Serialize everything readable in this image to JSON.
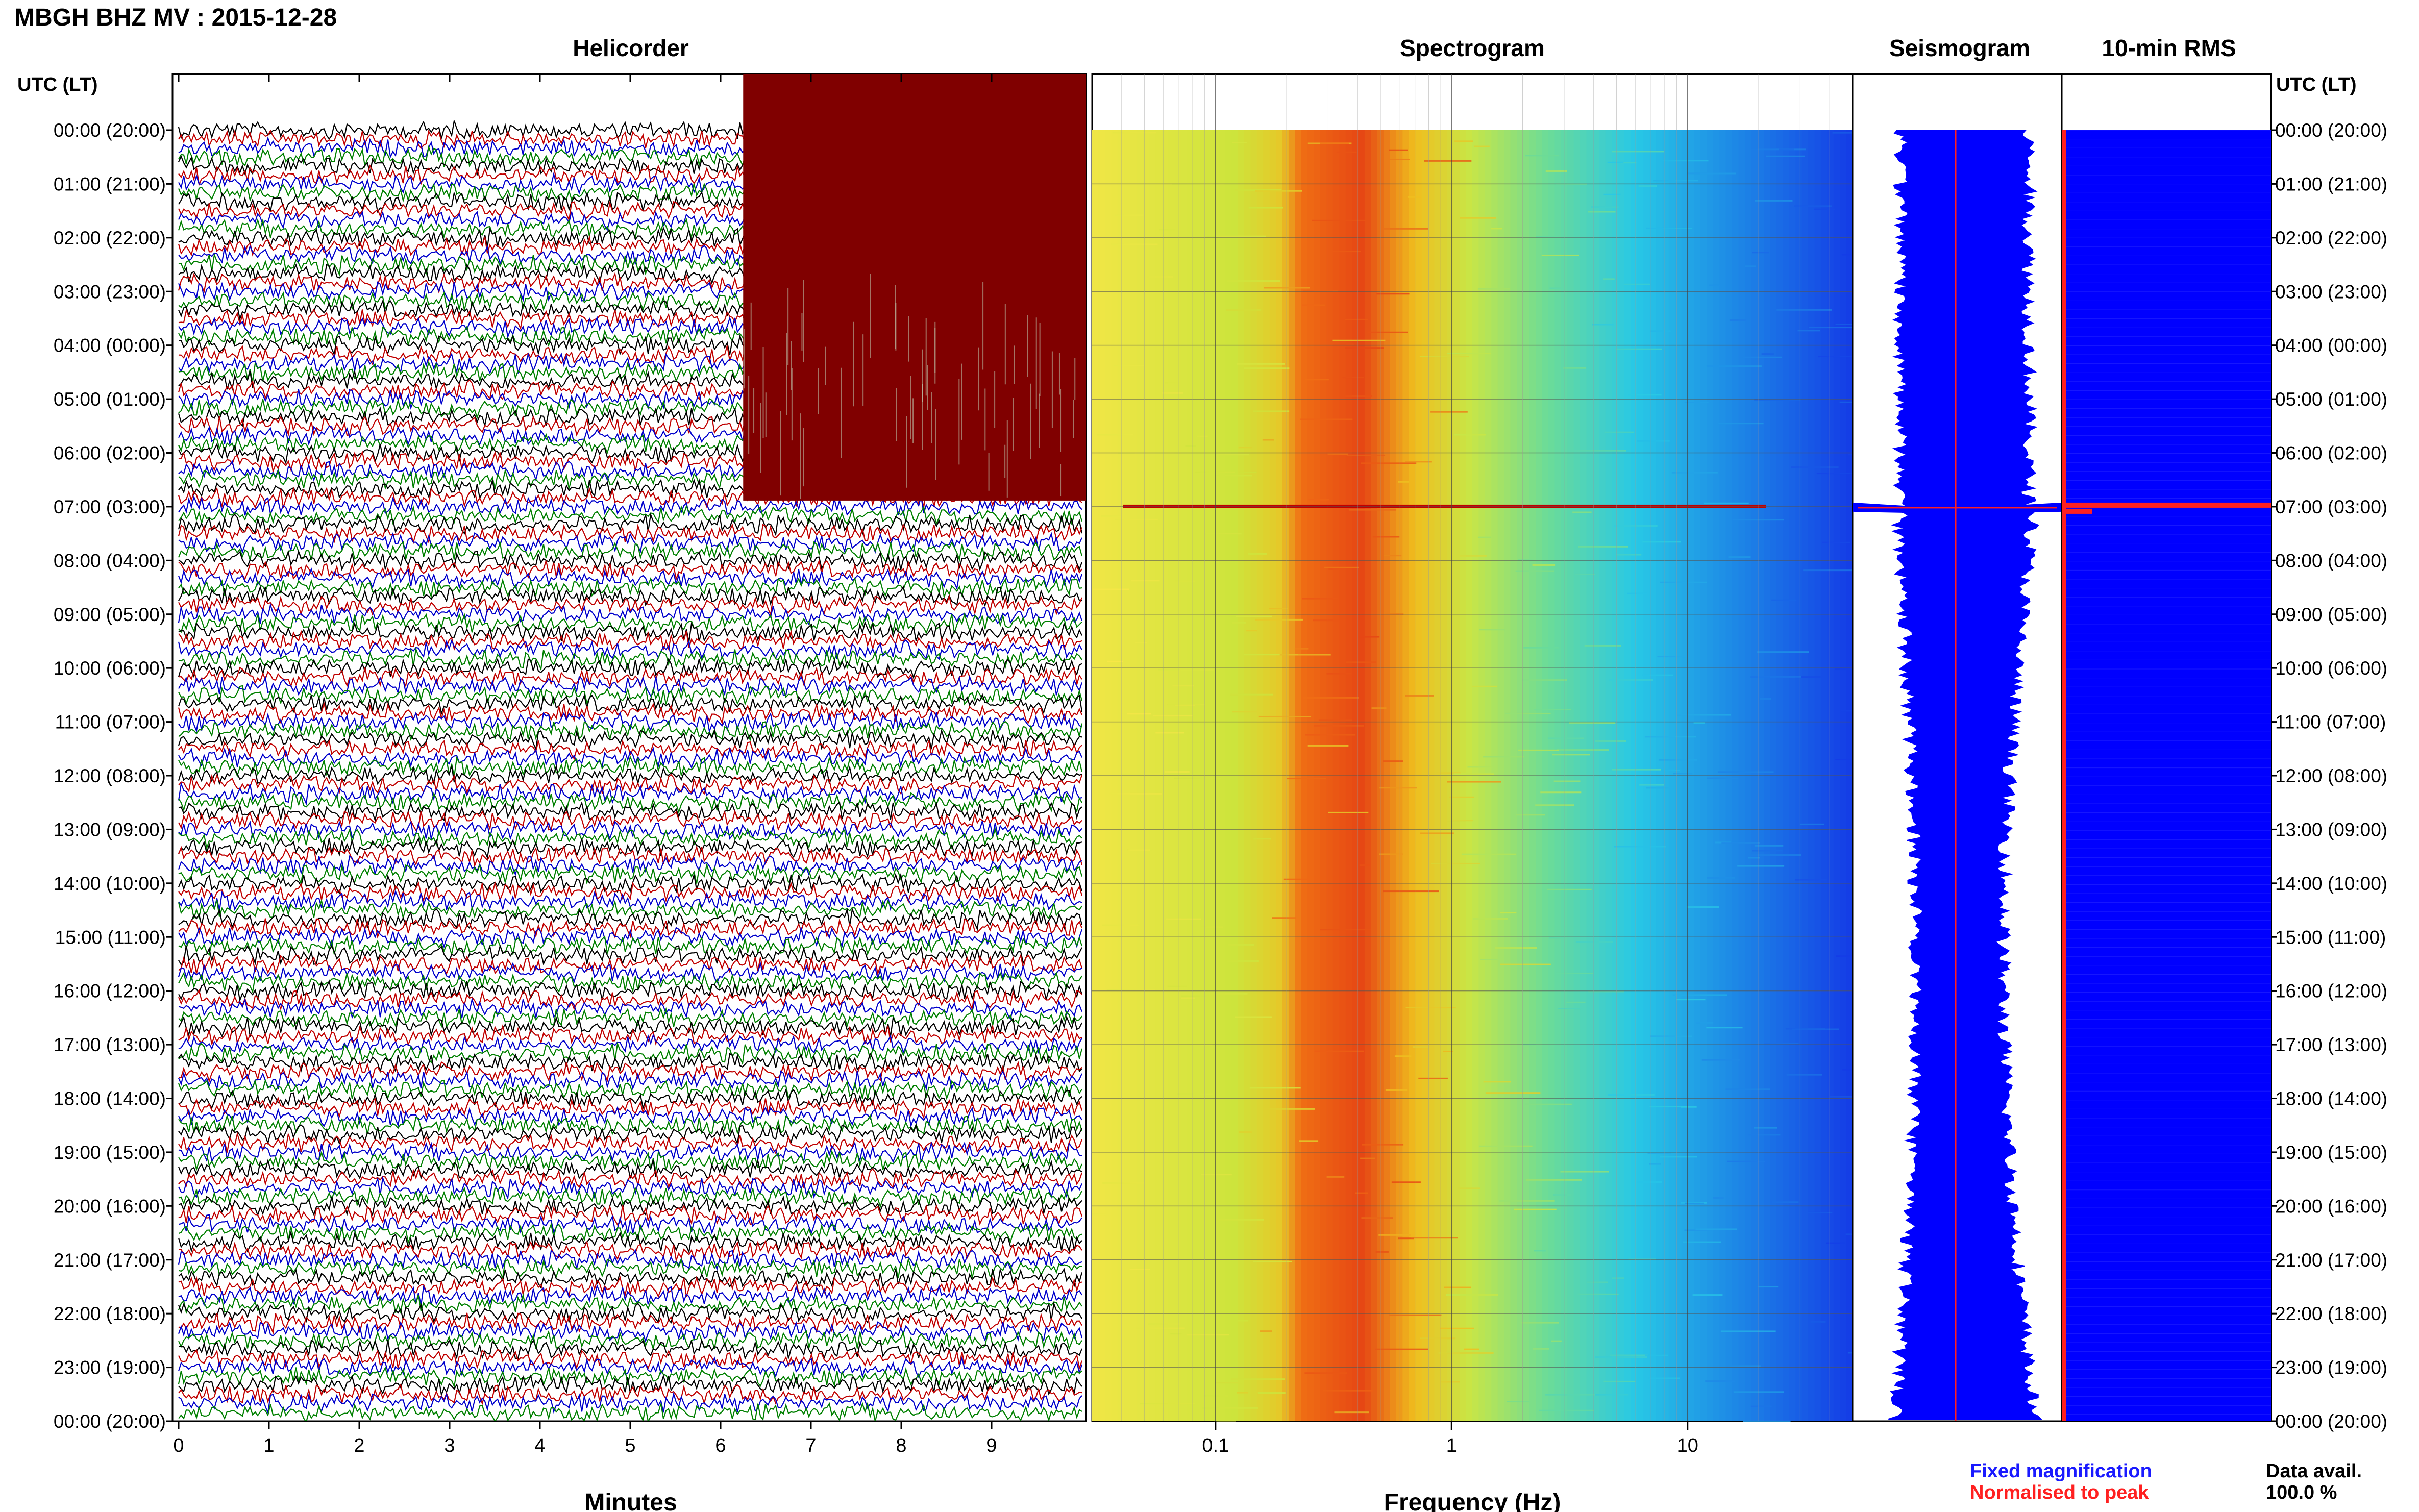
{
  "header": {
    "station_title": "MBGH BHZ MV : 2015-12-28"
  },
  "panels": {
    "helicorder": "Helicorder",
    "spectrogram": "Spectrogram",
    "seismogram": "Seismogram",
    "rms": "10-min RMS"
  },
  "axis": {
    "time_header_left": "UTC (LT)",
    "time_header_right": "UTC (LT)",
    "minutes_label": "Minutes",
    "frequency_label": "Frequency (Hz)"
  },
  "legend": {
    "fixed": "Fixed magnification",
    "normalised": "Normalised to peak",
    "fixed_color": "#1a1aff",
    "normalised_color": "#ff2020"
  },
  "availability": {
    "label": "Data avail.",
    "value": "100.0 %"
  },
  "chart_data": [
    {
      "type": "line",
      "panel": "Helicorder",
      "xlabel": "Minutes",
      "xlim": [
        0,
        10
      ],
      "x_ticks": [
        "0",
        "1",
        "2",
        "3",
        "4",
        "5",
        "6",
        "7",
        "8",
        "9"
      ],
      "time_labels": [
        "00:00 (20:00)",
        "01:00 (21:00)",
        "02:00 (22:00)",
        "03:00 (23:00)",
        "04:00 (00:00)",
        "05:00 (01:00)",
        "06:00 (02:00)",
        "07:00 (03:00)",
        "08:00 (04:00)",
        "09:00 (05:00)",
        "10:00 (06:00)",
        "11:00 (07:00)",
        "12:00 (08:00)",
        "13:00 (09:00)",
        "14:00 (10:00)",
        "15:00 (11:00)",
        "16:00 (12:00)",
        "17:00 (13:00)",
        "18:00 (14:00)",
        "19:00 (15:00)",
        "20:00 (16:00)",
        "21:00 (17:00)",
        "22:00 (18:00)",
        "23:00 (19:00)",
        "00:00 (20:00)"
      ],
      "trace_colors": [
        "#000000",
        "#c00000",
        "#0000cc",
        "#008000"
      ],
      "event_color": "#800000",
      "saturated_window_minutes": [
        6.25,
        10
      ],
      "saturated_hours": [
        0,
        7
      ],
      "event_hour": 7.0
    },
    {
      "type": "heatmap",
      "panel": "Spectrogram",
      "xlabel": "Frequency (Hz)",
      "x_scale": "log",
      "xlim": [
        0.03,
        50
      ],
      "x_ticks": [
        "0.1",
        "1",
        "10"
      ],
      "peak_band_hz": [
        0.2,
        0.5
      ],
      "event_hour": 7.0
    },
    {
      "type": "line",
      "panel": "Seismogram",
      "event_hour": 7.0
    },
    {
      "type": "bar",
      "panel": "10-min RMS",
      "event_hour": 7.0
    }
  ]
}
